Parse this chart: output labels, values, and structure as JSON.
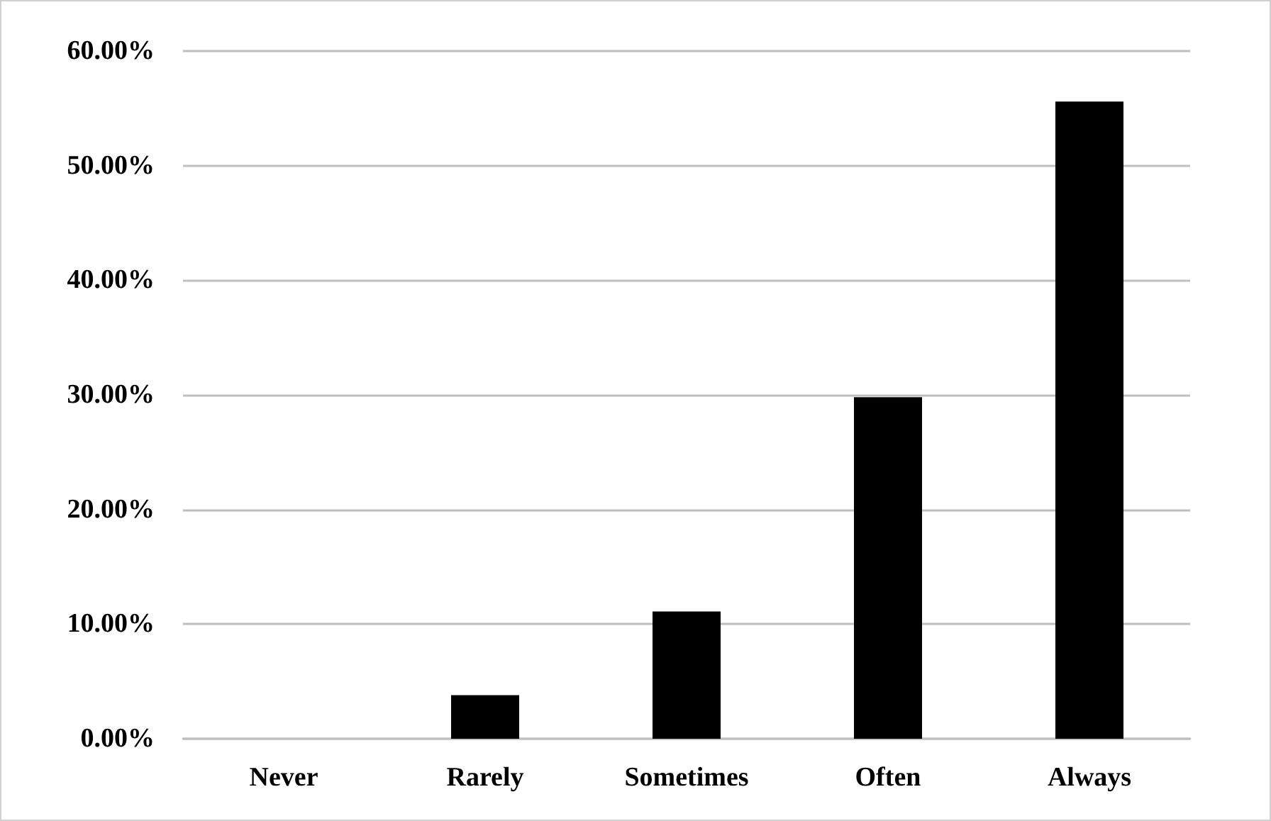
{
  "chart_data": {
    "type": "bar",
    "categories": [
      "Never",
      "Rarely",
      "Sometimes",
      "Often",
      "Always"
    ],
    "values": [
      0,
      3.8,
      11.1,
      29.8,
      55.6
    ],
    "color": "#000000",
    "ylim": [
      0,
      60
    ],
    "yticks": [
      {
        "value": 0,
        "label": "0.00%"
      },
      {
        "value": 10,
        "label": "10.00%"
      },
      {
        "value": 20,
        "label": "20.00%"
      },
      {
        "value": 30,
        "label": "30.00%"
      },
      {
        "value": 40,
        "label": "40.00%"
      },
      {
        "value": 50,
        "label": "50.00%"
      },
      {
        "value": 60,
        "label": "60.00%"
      }
    ],
    "grid": "y"
  }
}
